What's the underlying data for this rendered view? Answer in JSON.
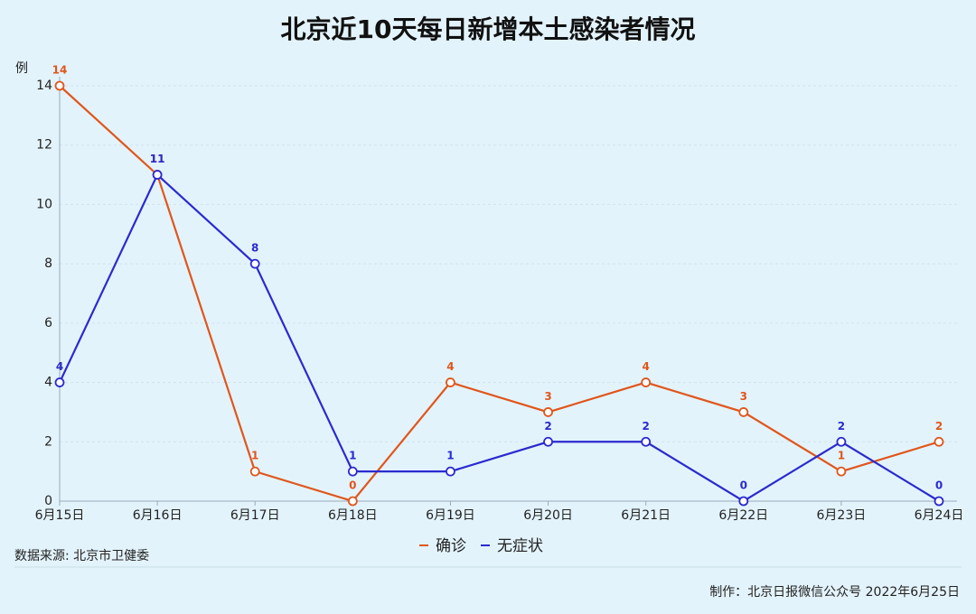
{
  "chart_data": {
    "type": "line",
    "title": "北京近10天每日新增本土感染者情况",
    "y_label": "例",
    "source": "数据来源: 北京市卫健委",
    "credit": "制作：北京日报微信公众号  2022年6月25日",
    "categories": [
      "6月15日",
      "6月16日",
      "6月17日",
      "6月18日",
      "6月19日",
      "6月20日",
      "6月21日",
      "6月22日",
      "6月23日",
      "6月24日"
    ],
    "series": [
      {
        "name": "确诊",
        "color": "#e0561b",
        "values": [
          14,
          11,
          1,
          0,
          4,
          3,
          4,
          3,
          1,
          2
        ]
      },
      {
        "name": "无症状",
        "color": "#2a2ad0",
        "values": [
          4,
          11,
          8,
          1,
          1,
          2,
          2,
          0,
          2,
          0
        ]
      }
    ],
    "ylim": [
      0,
      14
    ],
    "yticks": [
      0,
      2,
      4,
      6,
      8,
      10,
      12,
      14
    ],
    "grid": true
  }
}
